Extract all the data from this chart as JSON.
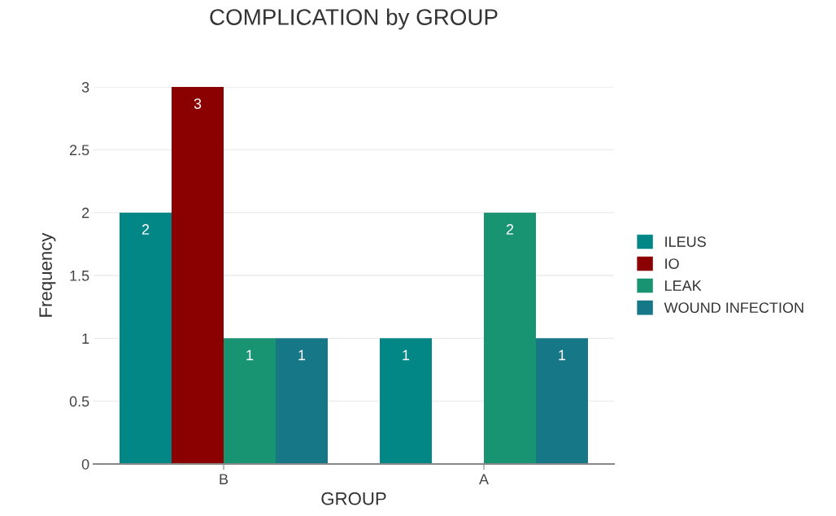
{
  "chart_data": {
    "type": "bar",
    "title": "COMPLICATION by GROUP",
    "xlabel": "GROUP",
    "ylabel": "Frequency",
    "categories": [
      "B",
      "A"
    ],
    "series": [
      {
        "name": "ILEUS",
        "color": "#028786",
        "values": [
          2,
          1
        ]
      },
      {
        "name": "IO",
        "color": "#8b0000",
        "values": [
          3,
          null
        ]
      },
      {
        "name": "LEAK",
        "color": "#199473",
        "values": [
          1,
          2
        ]
      },
      {
        "name": "WOUND INFECTION",
        "color": "#167787",
        "values": [
          1,
          1
        ]
      }
    ],
    "ylim": [
      0,
      3
    ],
    "yticks": [
      0,
      0.5,
      1,
      1.5,
      2,
      2.5,
      3
    ],
    "grid": "y",
    "legend": "right",
    "data_labels": true
  }
}
